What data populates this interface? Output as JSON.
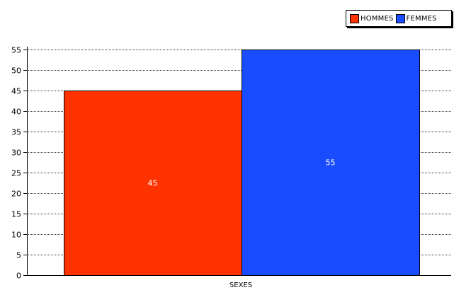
{
  "chart_data": {
    "type": "bar",
    "categories": [
      "SEXES"
    ],
    "series": [
      {
        "name": "HOMMES",
        "values": [
          45
        ],
        "color": "#ff3300"
      },
      {
        "name": "FEMMES",
        "values": [
          55
        ],
        "color": "#1a4cff"
      }
    ],
    "title": "",
    "xlabel": "SEXES",
    "ylabel": "",
    "ylim": [
      0,
      55
    ],
    "yticks": [
      0,
      5,
      10,
      15,
      20,
      25,
      30,
      35,
      40,
      45,
      50,
      55
    ],
    "grid": true,
    "grid_style": "dotted",
    "legend_position": "top-right",
    "data_labels": true,
    "data_label_color": "#ffffff"
  }
}
